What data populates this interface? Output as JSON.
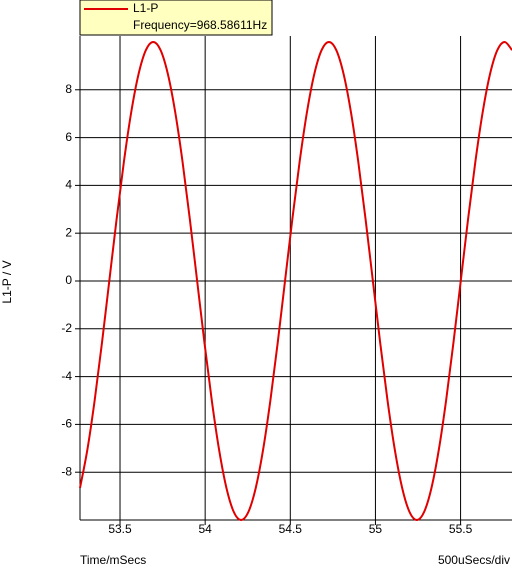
{
  "chart_data": {
    "type": "line",
    "y_label": "L1-P / V",
    "x_label": "Time/mSecs",
    "scale_note": "500uSecs/div",
    "annotation": "Frequency=968.58611Hz",
    "x": [
      53.265,
      53.308,
      53.351,
      53.394,
      53.437,
      53.48,
      53.523,
      53.566,
      53.609,
      53.652,
      53.695,
      53.738,
      53.781,
      53.824,
      53.867,
      53.91,
      53.953,
      53.996,
      54.039,
      54.082,
      54.125,
      54.168,
      54.211,
      54.254,
      54.297,
      54.34,
      54.383,
      54.426,
      54.469,
      54.512,
      54.555,
      54.598,
      54.641,
      54.684,
      54.727,
      54.77,
      54.813,
      54.856,
      54.899,
      54.942,
      54.985,
      55.028,
      55.071,
      55.114,
      55.157,
      55.2,
      55.243,
      55.286,
      55.329,
      55.372,
      55.415,
      55.458,
      55.501,
      55.544,
      55.587,
      55.63,
      55.673,
      55.716,
      55.759,
      55.802
    ],
    "series": [
      {
        "name": "L1-P",
        "color": "#e00000",
        "values": [
          -8.66,
          -7.07,
          -5,
          -2.59,
          0,
          2.59,
          5,
          7.07,
          8.66,
          9.66,
          10,
          9.66,
          8.66,
          7.07,
          5,
          2.59,
          0,
          -2.59,
          -5,
          -7.07,
          -8.66,
          -9.66,
          -10,
          -9.66,
          -8.66,
          -7.07,
          -5,
          -2.59,
          0,
          2.59,
          5,
          7.07,
          8.66,
          9.66,
          10,
          9.66,
          8.66,
          7.07,
          5,
          2.59,
          0,
          -2.59,
          -5,
          -7.07,
          -8.66,
          -9.66,
          -10,
          -9.66,
          -8.66,
          -7.07,
          -5,
          -2.59,
          0,
          2.59,
          5,
          7.07,
          8.66,
          9.66,
          10,
          9.66
        ]
      }
    ],
    "xlim": [
      53.265,
      55.802
    ],
    "ylim": [
      -10,
      10.25
    ],
    "xticks": [
      53.5,
      54,
      54.5,
      55,
      55.5
    ],
    "yticks": [
      -8,
      -6,
      -4,
      -2,
      0,
      2,
      4,
      6,
      8
    ],
    "grid": true
  }
}
